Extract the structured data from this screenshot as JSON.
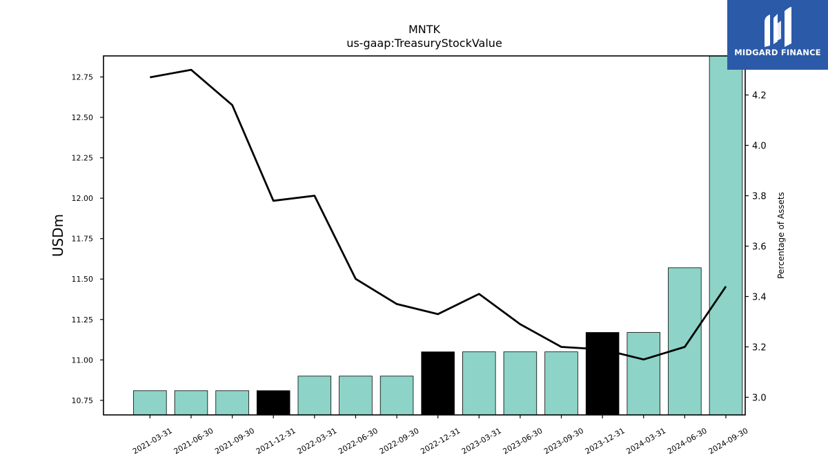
{
  "brand": {
    "name": "MIDGARD FINANCE",
    "bg_color": "#2b5aa8",
    "icon": "midgard-logo-icon"
  },
  "chart_data": {
    "type": "bar",
    "title": "MNTK",
    "subtitle": "us-gaap:TreasuryStockValue",
    "ylabel": "USDm",
    "y2label": "Percentage of Assets",
    "categories": [
      "2021-03-31",
      "2021-06-30",
      "2021-09-30",
      "2021-12-31",
      "2022-03-31",
      "2022-06-30",
      "2022-09-30",
      "2022-12-31",
      "2023-03-31",
      "2023-06-30",
      "2023-09-30",
      "2023-12-31",
      "2024-03-31",
      "2024-06-30",
      "2024-09-30"
    ],
    "series": [
      {
        "kind": "bar",
        "axis": "left",
        "values": [
          10.81,
          10.81,
          10.81,
          10.81,
          10.9,
          10.9,
          10.9,
          11.05,
          11.05,
          11.05,
          11.05,
          11.17,
          11.17,
          11.57,
          12.89
        ],
        "colors": [
          "#8dd3c7",
          "#8dd3c7",
          "#8dd3c7",
          "#000000",
          "#8dd3c7",
          "#8dd3c7",
          "#8dd3c7",
          "#000000",
          "#8dd3c7",
          "#8dd3c7",
          "#8dd3c7",
          "#000000",
          "#8dd3c7",
          "#8dd3c7",
          "#8dd3c7"
        ]
      },
      {
        "kind": "line",
        "axis": "right",
        "color": "#000000",
        "values": [
          4.27,
          4.3,
          4.16,
          3.78,
          3.8,
          3.47,
          3.37,
          3.33,
          3.41,
          3.29,
          3.2,
          3.19,
          3.15,
          3.2,
          3.44
        ]
      }
    ],
    "ylim": [
      10.66,
      12.88
    ],
    "y2lim": [
      2.93,
      4.355
    ],
    "yticks": [
      "10.75",
      "11.00",
      "11.25",
      "11.50",
      "11.75",
      "12.00",
      "12.25",
      "12.50",
      "12.75"
    ],
    "y2ticks": [
      "3.0",
      "3.2",
      "3.4",
      "3.6",
      "3.8",
      "4.0",
      "4.2"
    ],
    "grid": false,
    "legend": "none"
  }
}
